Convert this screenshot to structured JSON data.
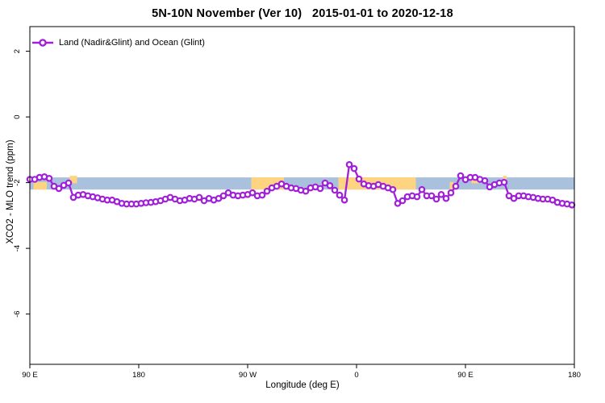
{
  "title": "5N-10N November (Ver 10)   2015-01-01 to 2020-12-18",
  "legend": {
    "label": "Land (Nadir&Glint) and Ocean (Glint)",
    "marker": "open-circle-on-line",
    "position": "top-left"
  },
  "colors": {
    "series": "#A21FDB",
    "marker_fill": "#FFFFFF",
    "reference_band": "#A9C1DC",
    "highlight": "#FFD480",
    "frame": "#000000",
    "background": "#FFFFFF"
  },
  "chart_data": {
    "type": "line",
    "title": "5N-10N November (Ver 10)   2015-01-01 to 2020-12-18",
    "xlabel": "Longitude (deg E)",
    "ylabel": "XCO2 - MLO trend (ppm)",
    "grid": false,
    "legend_position": "top-left",
    "x_axis": {
      "note": "longitude unwrapped eastward starting at 90E; 270=90W, 360=0, 450=90E, 540=180",
      "xlim": [
        90,
        540
      ],
      "ticks": [
        90,
        180,
        270,
        360,
        450,
        540
      ],
      "tick_labels": [
        "90 E",
        "180",
        "90 W",
        "0",
        "90 E",
        "180"
      ]
    },
    "y_axis": {
      "ylim": [
        -7.53,
        2.75
      ],
      "ticks": [
        2,
        0,
        -2,
        -4,
        -6
      ],
      "tick_labels": [
        "2",
        "0",
        "-2",
        "-4",
        "-6"
      ]
    },
    "reference_band": {
      "ymin": -2.21,
      "ymax": -1.84,
      "color": "#A9C1DC"
    },
    "highlight_segments": [
      {
        "from": 93,
        "to": 104,
        "align": "bottom"
      },
      {
        "from": 123,
        "to": 129,
        "align": "top"
      },
      {
        "from": 273,
        "to": 300,
        "align": "full"
      },
      {
        "from": 345,
        "to": 409,
        "align": "full"
      },
      {
        "from": 437,
        "to": 440,
        "align": "bottom"
      },
      {
        "from": 455,
        "to": 461,
        "align": "top"
      },
      {
        "from": 481,
        "to": 484,
        "align": "top"
      }
    ],
    "series": [
      {
        "name": "Land (Nadir&Glint) and Ocean (Glint)",
        "color": "#A21FDB",
        "marker": "circle",
        "x_start": 90,
        "x_step": 4,
        "values": [
          -1.9,
          -1.9,
          -1.84,
          -1.82,
          -1.87,
          -2.11,
          -2.18,
          -2.08,
          -2.01,
          -2.45,
          -2.38,
          -2.36,
          -2.4,
          -2.43,
          -2.46,
          -2.5,
          -2.53,
          -2.53,
          -2.58,
          -2.63,
          -2.65,
          -2.65,
          -2.65,
          -2.63,
          -2.61,
          -2.6,
          -2.58,
          -2.55,
          -2.5,
          -2.45,
          -2.5,
          -2.55,
          -2.53,
          -2.48,
          -2.5,
          -2.45,
          -2.55,
          -2.48,
          -2.53,
          -2.48,
          -2.4,
          -2.31,
          -2.38,
          -2.4,
          -2.38,
          -2.36,
          -2.31,
          -2.4,
          -2.38,
          -2.26,
          -2.16,
          -2.11,
          -2.04,
          -2.11,
          -2.16,
          -2.18,
          -2.23,
          -2.26,
          -2.16,
          -2.13,
          -2.18,
          -2.01,
          -2.09,
          -2.23,
          -2.38,
          -2.53,
          -1.45,
          -1.57,
          -1.89,
          -2.04,
          -2.09,
          -2.11,
          -2.06,
          -2.11,
          -2.16,
          -2.21,
          -2.63,
          -2.55,
          -2.43,
          -2.4,
          -2.43,
          -2.21,
          -2.4,
          -2.4,
          -2.5,
          -2.36,
          -2.48,
          -2.31,
          -2.11,
          -1.79,
          -1.91,
          -1.84,
          -1.84,
          -1.9,
          -1.94,
          -2.13,
          -2.06,
          -2.01,
          -1.99,
          -2.4,
          -2.48,
          -2.4,
          -2.4,
          -2.43,
          -2.45,
          -2.48,
          -2.5,
          -2.5,
          -2.53,
          -2.6,
          -2.63,
          -2.65,
          -2.68
        ]
      }
    ]
  }
}
